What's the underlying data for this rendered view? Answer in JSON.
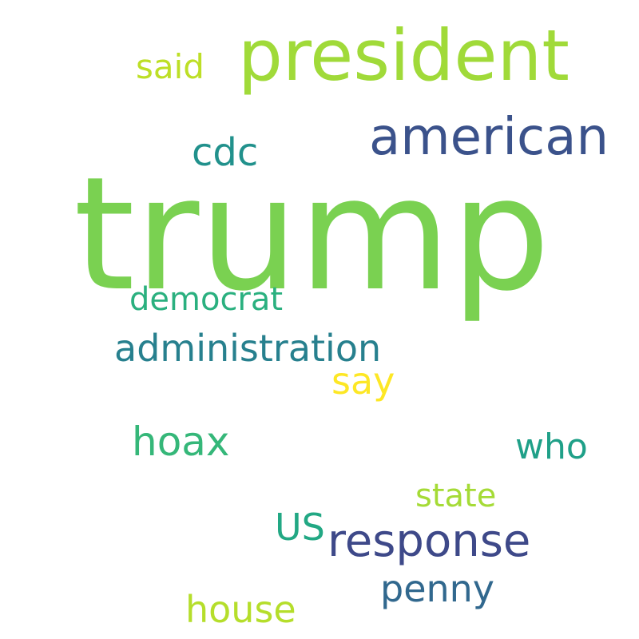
{
  "words": {
    "trump": {
      "text": "trump",
      "color": "#7ad151"
    },
    "president": {
      "text": "president",
      "color": "#a0da39"
    },
    "american": {
      "text": "american",
      "color": "#3b528b"
    },
    "said": {
      "text": "said",
      "color": "#bddf26"
    },
    "cdc": {
      "text": "cdc",
      "color": "#21918c"
    },
    "democrat": {
      "text": "democrat",
      "color": "#2ab07f"
    },
    "administration": {
      "text": "administration",
      "color": "#27808e"
    },
    "say": {
      "text": "say",
      "color": "#fde725"
    },
    "hoax": {
      "text": "hoax",
      "color": "#35b779"
    },
    "who": {
      "text": "who",
      "color": "#1fa088"
    },
    "state": {
      "text": "state",
      "color": "#a5db36"
    },
    "us": {
      "text": "US",
      "color": "#22a884"
    },
    "response": {
      "text": "response",
      "color": "#3e4989"
    },
    "penny": {
      "text": "penny",
      "color": "#31688e"
    },
    "house": {
      "text": "house",
      "color": "#b5de2b"
    }
  },
  "background_color": "#ffffff"
}
